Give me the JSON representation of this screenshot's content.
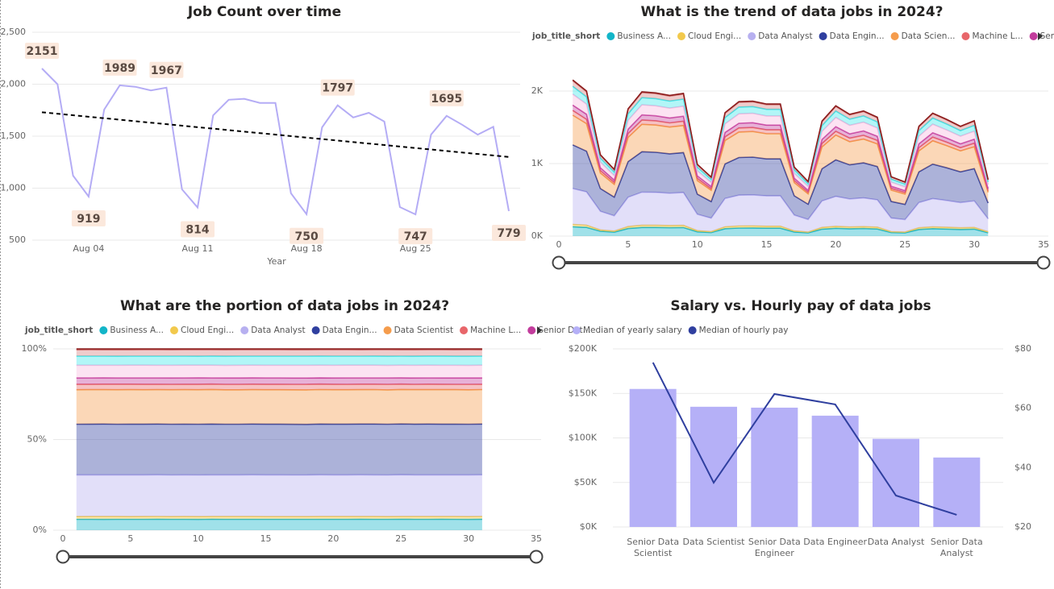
{
  "chart_data": [
    {
      "type": "line",
      "title": "Job Count over time",
      "xlabel": "Year",
      "categories": [
        null,
        null,
        null,
        "Aug 04",
        null,
        null,
        null,
        null,
        null,
        null,
        "Aug 11",
        null,
        null,
        null,
        null,
        null,
        null,
        "Aug 18",
        null,
        null,
        null,
        null,
        null,
        null,
        "Aug 25",
        null,
        null,
        null,
        null,
        null,
        null
      ],
      "values": [
        2151,
        2000,
        1120,
        919,
        1756,
        1989,
        1975,
        1940,
        1967,
        988,
        814,
        1700,
        1850,
        1860,
        1820,
        1820,
        950,
        750,
        1585,
        1797,
        1680,
        1725,
        1640,
        818,
        747,
        1515,
        1695,
        1610,
        1515,
        1590,
        779
      ],
      "value_labels": [
        "2151",
        null,
        null,
        "919",
        null,
        "1989",
        null,
        null,
        "1967",
        null,
        "814",
        null,
        null,
        null,
        null,
        null,
        null,
        "750",
        null,
        "1797",
        null,
        null,
        null,
        null,
        "747",
        null,
        "1695",
        null,
        null,
        null,
        "779"
      ],
      "trendline": [
        1730,
        1300
      ],
      "color": "#b4acf5",
      "ylim": [
        500,
        2500
      ],
      "yticks": [
        500,
        {
          "value": 1000,
          "label": "1,000"
        },
        {
          "value": 1500,
          "label": "1,500"
        },
        {
          "value": 2000,
          "label": "2,000"
        },
        {
          "value": 2500,
          "label": "2,500"
        }
      ],
      "grid": true
    },
    {
      "type": "area",
      "stack": "normal",
      "title": "What is the trend of data jobs in 2024?",
      "legend_title": "job_title_short",
      "x": [
        1,
        2,
        3,
        4,
        5,
        6,
        7,
        8,
        9,
        10,
        11,
        12,
        13,
        14,
        15,
        16,
        17,
        18,
        19,
        20,
        21,
        22,
        23,
        24,
        25,
        26,
        27,
        28,
        29,
        30,
        31
      ],
      "xlim": [
        0,
        35
      ],
      "xticks": [
        0,
        5,
        10,
        15,
        20,
        25,
        30,
        35
      ],
      "ylim": [
        0,
        2200
      ],
      "yticks": [
        {
          "value": 0,
          "label": "0K"
        },
        {
          "value": 1000,
          "label": "1K"
        },
        {
          "value": 2000,
          "label": "2K"
        }
      ],
      "grid": true,
      "series": [
        {
          "name": "Business A...",
          "color": "#12b5c8",
          "values": [
            129,
            120,
            67,
            55,
            105,
            119,
            119,
            116,
            118,
            59,
            49,
            102,
            111,
            112,
            109,
            109,
            57,
            45,
            95,
            108,
            101,
            104,
            98,
            49,
            45,
            91,
            102,
            97,
            91,
            95,
            47
          ]
        },
        {
          "name": "Cloud Engi...",
          "color": "#f2c94c",
          "values": [
            32,
            30,
            17,
            14,
            26,
            30,
            30,
            29,
            30,
            15,
            12,
            26,
            28,
            28,
            27,
            27,
            14,
            11,
            24,
            27,
            25,
            26,
            25,
            12,
            11,
            23,
            25,
            24,
            23,
            24,
            12
          ]
        },
        {
          "name": "Data Analyst",
          "color": "#b7b0f0",
          "values": [
            495,
            460,
            258,
            211,
            404,
            457,
            454,
            446,
            452,
            227,
            187,
            391,
            426,
            428,
            419,
            419,
            219,
            173,
            365,
            413,
            386,
            397,
            377,
            188,
            172,
            348,
            390,
            370,
            348,
            366,
            179
          ]
        },
        {
          "name": "Data Engin...",
          "color": "#2f3f9f",
          "values": [
            602,
            560,
            314,
            257,
            492,
            557,
            553,
            543,
            551,
            277,
            228,
            476,
            518,
            521,
            510,
            510,
            266,
            210,
            444,
            503,
            470,
            483,
            459,
            229,
            209,
            424,
            475,
            451,
            424,
            445,
            218
          ]
        },
        {
          "name": "Data Scien...",
          "color": "#f59c4c",
          "values": [
            409,
            380,
            213,
            175,
            334,
            378,
            375,
            369,
            374,
            188,
            155,
            323,
            352,
            353,
            346,
            346,
            181,
            143,
            301,
            341,
            319,
            328,
            312,
            155,
            142,
            288,
            322,
            306,
            288,
            302,
            148
          ]
        },
        {
          "name": "Machine L...",
          "color": "#e8666a",
          "values": [
            65,
            60,
            34,
            28,
            53,
            60,
            59,
            58,
            59,
            30,
            24,
            51,
            56,
            56,
            55,
            55,
            29,
            23,
            48,
            54,
            50,
            52,
            49,
            25,
            22,
            45,
            51,
            48,
            45,
            48,
            23
          ]
        },
        {
          "name": "Senior Dat...",
          "color": "#c23c9c",
          "values": [
            75,
            70,
            39,
            32,
            61,
            70,
            69,
            68,
            69,
            35,
            28,
            60,
            65,
            65,
            64,
            64,
            33,
            26,
            55,
            63,
            59,
            60,
            57,
            29,
            26,
            53,
            59,
            56,
            53,
            56,
            27
          ]
        },
        {
          "color": "#f7b8df",
          "values": [
            151,
            140,
            78,
            64,
            123,
            139,
            138,
            136,
            138,
            69,
            57,
            119,
            130,
            130,
            127,
            127,
            67,
            53,
            111,
            126,
            118,
            121,
            115,
            57,
            52,
            106,
            119,
            113,
            106,
            111,
            55
          ]
        },
        {
          "color": "#3ee8ec",
          "values": [
            108,
            100,
            56,
            46,
            88,
            99,
            99,
            97,
            98,
            49,
            41,
            85,
            93,
            93,
            91,
            91,
            48,
            38,
            79,
            90,
            84,
            86,
            82,
            41,
            37,
            76,
            85,
            81,
            76,
            80,
            39
          ]
        },
        {
          "color": "#d8807f",
          "values": [
            75,
            70,
            39,
            32,
            61,
            70,
            69,
            68,
            69,
            35,
            28,
            60,
            65,
            65,
            64,
            64,
            33,
            26,
            55,
            63,
            59,
            60,
            57,
            29,
            26,
            53,
            59,
            56,
            53,
            56,
            27
          ]
        },
        {
          "color": "#8b1c1c",
          "values": [
            11,
            10,
            6,
            5,
            9,
            10,
            10,
            10,
            10,
            5,
            4,
            9,
            9,
            9,
            9,
            9,
            5,
            4,
            8,
            9,
            8,
            9,
            8,
            4,
            4,
            8,
            8,
            8,
            8,
            8,
            4
          ]
        }
      ]
    },
    {
      "type": "area",
      "stack": "percent",
      "title": "What are the portion of data jobs in 2024?",
      "legend_title": "job_title_short",
      "x": [
        1,
        2,
        3,
        4,
        5,
        6,
        7,
        8,
        9,
        10,
        11,
        12,
        13,
        14,
        15,
        16,
        17,
        18,
        19,
        20,
        21,
        22,
        23,
        24,
        25,
        26,
        27,
        28,
        29,
        30,
        31
      ],
      "xlim": [
        0,
        35
      ],
      "xticks": [
        0,
        5,
        10,
        15,
        20,
        25,
        30,
        35
      ],
      "ylim": [
        0,
        100
      ],
      "yticks": [
        {
          "value": 0,
          "label": "0%"
        },
        {
          "value": 50,
          "label": "50%"
        },
        {
          "value": 100,
          "label": "100%"
        }
      ],
      "grid": true,
      "series": [
        {
          "name": "Business A...",
          "color": "#12b5c8",
          "values": [
            129,
            120,
            67,
            55,
            105,
            119,
            119,
            116,
            118,
            59,
            49,
            102,
            111,
            112,
            109,
            109,
            57,
            45,
            95,
            108,
            101,
            104,
            98,
            49,
            45,
            91,
            102,
            97,
            91,
            95,
            47
          ]
        },
        {
          "name": "Cloud Engi...",
          "color": "#f2c94c",
          "values": [
            32,
            30,
            17,
            14,
            26,
            30,
            30,
            29,
            30,
            15,
            12,
            26,
            28,
            28,
            27,
            27,
            14,
            11,
            24,
            27,
            25,
            26,
            25,
            12,
            11,
            23,
            25,
            24,
            23,
            24,
            12
          ]
        },
        {
          "name": "Data Analyst",
          "color": "#b7b0f0",
          "values": [
            495,
            460,
            258,
            211,
            404,
            457,
            454,
            446,
            452,
            227,
            187,
            391,
            426,
            428,
            419,
            419,
            219,
            173,
            365,
            413,
            386,
            397,
            377,
            188,
            172,
            348,
            390,
            370,
            348,
            366,
            179
          ]
        },
        {
          "name": "Data Engin...",
          "color": "#2f3f9f",
          "values": [
            602,
            560,
            314,
            257,
            492,
            557,
            553,
            543,
            551,
            277,
            228,
            476,
            518,
            521,
            510,
            510,
            266,
            210,
            444,
            503,
            470,
            483,
            459,
            229,
            209,
            424,
            475,
            451,
            424,
            445,
            218
          ]
        },
        {
          "name": "Data Scientist",
          "color": "#f59c4c",
          "values": [
            409,
            380,
            213,
            175,
            334,
            378,
            375,
            369,
            374,
            188,
            155,
            323,
            352,
            353,
            346,
            346,
            181,
            143,
            301,
            341,
            319,
            328,
            312,
            155,
            142,
            288,
            322,
            306,
            288,
            302,
            148
          ]
        },
        {
          "name": "Machine L...",
          "color": "#e8666a",
          "values": [
            65,
            60,
            34,
            28,
            53,
            60,
            59,
            58,
            59,
            30,
            24,
            51,
            56,
            56,
            55,
            55,
            29,
            23,
            48,
            54,
            50,
            52,
            49,
            25,
            22,
            45,
            51,
            48,
            45,
            48,
            23
          ]
        },
        {
          "name": "Senior Dat...",
          "color": "#c23c9c",
          "values": [
            75,
            70,
            39,
            32,
            61,
            70,
            69,
            68,
            69,
            35,
            28,
            60,
            65,
            65,
            64,
            64,
            33,
            26,
            55,
            63,
            59,
            60,
            57,
            29,
            26,
            53,
            59,
            56,
            53,
            56,
            27
          ]
        },
        {
          "color": "#f7b8df",
          "values": [
            151,
            140,
            78,
            64,
            123,
            139,
            138,
            136,
            138,
            69,
            57,
            119,
            130,
            130,
            127,
            127,
            67,
            53,
            111,
            126,
            118,
            121,
            115,
            57,
            52,
            106,
            119,
            113,
            106,
            111,
            55
          ]
        },
        {
          "color": "#3ee8ec",
          "values": [
            108,
            100,
            56,
            46,
            88,
            99,
            99,
            97,
            98,
            49,
            41,
            85,
            93,
            93,
            91,
            91,
            48,
            38,
            79,
            90,
            84,
            86,
            82,
            41,
            37,
            76,
            85,
            81,
            76,
            80,
            39
          ]
        },
        {
          "color": "#d8807f",
          "values": [
            75,
            70,
            39,
            32,
            61,
            70,
            69,
            68,
            69,
            35,
            28,
            60,
            65,
            65,
            64,
            64,
            33,
            26,
            55,
            63,
            59,
            60,
            57,
            29,
            26,
            53,
            59,
            56,
            53,
            56,
            27
          ]
        },
        {
          "color": "#8b1c1c",
          "values": [
            11,
            10,
            6,
            5,
            9,
            10,
            10,
            10,
            10,
            5,
            4,
            9,
            9,
            9,
            9,
            9,
            5,
            4,
            8,
            9,
            8,
            9,
            8,
            4,
            4,
            8,
            8,
            8,
            8,
            8,
            4
          ]
        }
      ]
    },
    {
      "type": "bar",
      "title": "Salary vs. Hourly pay of data jobs",
      "categories": [
        "Senior Data Scientist",
        "Data Scientist",
        "Senior Data Engineer",
        "Data Engineer",
        "Data Analyst",
        "Senior Data Analyst"
      ],
      "ylim": [
        0,
        200000
      ],
      "yticks": [
        {
          "value": 0,
          "label": "$0K"
        },
        {
          "value": 50000,
          "label": "$50K"
        },
        {
          "value": 100000,
          "label": "$100K"
        },
        {
          "value": 150000,
          "label": "$150K"
        },
        {
          "value": 200000,
          "label": "$200K"
        }
      ],
      "y2lim": [
        20,
        80
      ],
      "y2ticks": [
        {
          "value": 20,
          "label": "$20"
        },
        {
          "value": 40,
          "label": "$40"
        },
        {
          "value": 60,
          "label": "$60"
        },
        {
          "value": 80,
          "label": "$80"
        }
      ],
      "grid": true,
      "series": [
        {
          "name": "Median of yearly salary",
          "type": "bar",
          "color": "#b5b0f7",
          "values": [
            155000,
            135000,
            134000,
            125000,
            99000,
            78000
          ]
        },
        {
          "name": "Median of hourly pay",
          "type": "line",
          "axis": "y2",
          "color": "#2f3f9f",
          "values": [
            75.4,
            34.9,
            64.8,
            61.3,
            30.6,
            24.1
          ]
        }
      ]
    }
  ]
}
